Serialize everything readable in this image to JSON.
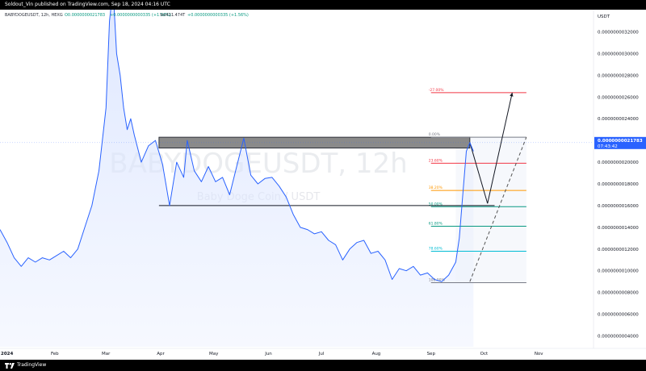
{
  "header": {
    "published": "Soldout_Vin published on TradingView.com, Sep 18, 2024 04:16 UTC"
  },
  "footer": {
    "brand": "TradingView"
  },
  "colors": {
    "line": "#2962ff",
    "area": "#dbe5ff",
    "price_tag": "#2962ff",
    "fib_red": "#f23645",
    "fib_orange": "#ff9800",
    "fib_green": "#089981",
    "fib_teal": "#00bcd4",
    "fib_gray": "#787b86"
  },
  "chart_data": {
    "type": "line",
    "symbol": "BABYDOGEUSDT, 12h, HEXG",
    "ohlc": {
      "open": "O0.0000000021783",
      "high": "H0.0000000021783",
      "low": "L0.0000000021783",
      "close": "C0.0000000021783",
      "change": "+0.0000000000335 (+1.56%)",
      "volume": "Vol411.474T",
      "volume_change": "+0.0000000000335 (+1.56%)"
    },
    "watermark_symbol": "BABYDOGEUSDT, 12h",
    "watermark_desc": "Baby Doge Coin / USDT",
    "currency": "USDT",
    "ylim": [
      3e-10,
      3.3e-09
    ],
    "y_ticks": [
      "0.0000000032000",
      "0.0000000030000",
      "0.0000000028000",
      "0.0000000026000",
      "0.0000000024000",
      "0.0000000022000",
      "0.0000000020000",
      "0.0000000018000",
      "0.0000000016000",
      "0.0000000014000",
      "0.0000000012000",
      "0.0000000010000",
      "0.0000000008000",
      "0.0000000006000",
      "0.0000000004000"
    ],
    "y_tick_values": [
      3.2,
      3.0,
      2.8,
      2.6,
      2.4,
      2.2,
      2.0,
      1.8,
      1.6,
      1.4,
      1.2,
      1.0,
      0.8,
      0.6,
      0.4
    ],
    "x_ticks": [
      "2024",
      "Feb",
      "Mar",
      "Apr",
      "May",
      "Jun",
      "Jul",
      "Aug",
      "Sep",
      "Oct",
      "Nov"
    ],
    "x_tick_days": [
      0,
      31,
      60,
      91,
      121,
      152,
      182,
      213,
      244,
      274,
      305
    ],
    "x_range_days": [
      0,
      336
    ],
    "last_price": "0.0000000021783",
    "countdown": "07:43:42",
    "series": [
      {
        "values_days": [
          0,
          4,
          8,
          12,
          16,
          20,
          24,
          28,
          32,
          36,
          40,
          44,
          48,
          52,
          56,
          60,
          62,
          64,
          66,
          68,
          70,
          72,
          74,
          76,
          80,
          84,
          88,
          92,
          96,
          100,
          104,
          106,
          110,
          114,
          118,
          122,
          126,
          130,
          134,
          138,
          142,
          146,
          150,
          154,
          158,
          162,
          166,
          170,
          174,
          178,
          182,
          186,
          190,
          194,
          198,
          202,
          206,
          210,
          214,
          218,
          222,
          226,
          230,
          234,
          238,
          242,
          246,
          250,
          254,
          258,
          260,
          262,
          264,
          266,
          268
        ],
        "values": [
          1.38,
          1.26,
          1.12,
          1.04,
          1.12,
          1.08,
          1.12,
          1.1,
          1.14,
          1.18,
          1.12,
          1.2,
          1.4,
          1.6,
          1.92,
          2.5,
          3.3,
          3.6,
          3.0,
          2.8,
          2.5,
          2.3,
          2.4,
          2.25,
          2.0,
          2.15,
          2.2,
          1.98,
          1.6,
          2.0,
          1.86,
          2.2,
          1.92,
          1.82,
          1.96,
          1.82,
          1.86,
          1.7,
          1.96,
          2.22,
          1.88,
          1.8,
          1.85,
          1.86,
          1.78,
          1.68,
          1.52,
          1.4,
          1.38,
          1.34,
          1.36,
          1.28,
          1.24,
          1.1,
          1.2,
          1.26,
          1.28,
          1.16,
          1.18,
          1.1,
          0.92,
          1.02,
          1.0,
          1.04,
          0.96,
          0.98,
          0.92,
          0.9,
          0.96,
          1.08,
          1.3,
          1.7,
          2.1,
          2.18,
          2.1
        ]
      }
    ],
    "fibonacci": [
      {
        "label": "-27.00%",
        "price": 2.64,
        "color": "#f23645"
      },
      {
        "label": "0.00%",
        "price": 2.23,
        "color": "#787b86"
      },
      {
        "label": "23.60%",
        "price": 1.99,
        "color": "#f23645"
      },
      {
        "label": "38.20%",
        "price": 1.74,
        "color": "#ff9800"
      },
      {
        "label": "50.00%",
        "price": 1.59,
        "color": "#089981"
      },
      {
        "label": "61.80%",
        "price": 1.41,
        "color": "#089981"
      },
      {
        "label": "78.60%",
        "price": 1.18,
        "color": "#00bcd4"
      },
      {
        "label": "100.00%",
        "price": 0.89,
        "color": "#787b86"
      }
    ],
    "support_price": 1.6,
    "resistance_zone": [
      2.23,
      2.13
    ],
    "projection_path_days": [
      [
        266,
        2.18
      ],
      [
        276,
        1.62
      ],
      [
        290,
        2.64
      ]
    ],
    "trend_dashed_days": [
      [
        266,
        0.9
      ],
      [
        298,
        2.23
      ]
    ],
    "y_unit_note": "values ×1e-9"
  }
}
